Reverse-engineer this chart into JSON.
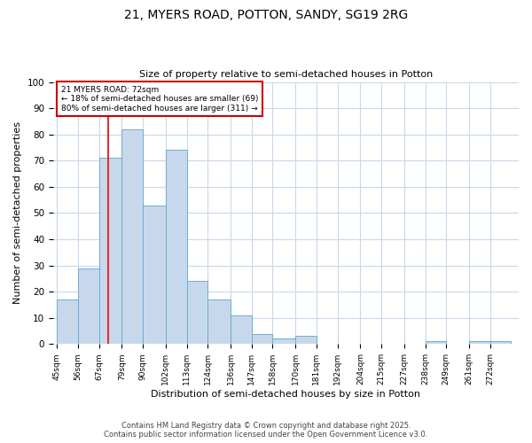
{
  "title_line1": "21, MYERS ROAD, POTTON, SANDY, SG19 2RG",
  "title_line2": "Size of property relative to semi-detached houses in Potton",
  "xlabel": "Distribution of semi-detached houses by size in Potton",
  "ylabel": "Number of semi-detached properties",
  "bins": [
    45,
    56,
    67,
    79,
    90,
    102,
    113,
    124,
    136,
    147,
    158,
    170,
    181,
    192,
    204,
    215,
    227,
    238,
    249,
    261,
    272
  ],
  "counts": [
    17,
    29,
    71,
    82,
    53,
    74,
    24,
    17,
    11,
    4,
    2,
    3,
    0,
    0,
    0,
    0,
    0,
    1,
    0,
    1,
    1
  ],
  "bar_facecolor": "#c8d8ec",
  "bar_edgecolor": "#6aaed6",
  "vline_x": 72,
  "vline_color": "#e03030",
  "annotation_text": "21 MYERS ROAD: 72sqm\n← 18% of semi-detached houses are smaller (69)\n80% of semi-detached houses are larger (311) →",
  "annotation_box_color": "#cc0000",
  "ylim": [
    0,
    100
  ],
  "yticks": [
    0,
    10,
    20,
    30,
    40,
    50,
    60,
    70,
    80,
    90,
    100
  ],
  "footnote1": "Contains HM Land Registry data © Crown copyright and database right 2025.",
  "footnote2": "Contains public sector information licensed under the Open Government Licence v3.0.",
  "background_color": "#ffffff",
  "grid_color": "#c8d8ec"
}
